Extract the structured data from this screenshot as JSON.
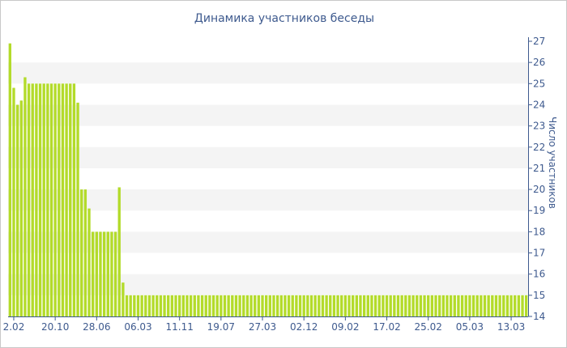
{
  "chart_data": {
    "type": "bar",
    "title": "Динамика участников беседы",
    "ylabel": "Число участников",
    "xlabel": "",
    "ylim": [
      14,
      27
    ],
    "y_ticks": [
      14,
      15,
      16,
      17,
      18,
      19,
      20,
      21,
      22,
      23,
      24,
      25,
      26,
      27
    ],
    "grid": "alternating horizontal bands",
    "bar_color": "#b3db2a",
    "band_color": "#f4f4f4",
    "x_tick_labels": [
      "2.02",
      "20.10",
      "28.06",
      "06.03",
      "11.11",
      "19.07",
      "27.03",
      "02.12",
      "09.02",
      "17.02",
      "25.02",
      "05.03",
      "13.03"
    ],
    "x_tick_positions": [
      1,
      12,
      23,
      34,
      45,
      56,
      67,
      78,
      89,
      100,
      111,
      122,
      133
    ],
    "values": [
      26.9,
      24.8,
      24.0,
      24.2,
      25.3,
      25.0,
      25.0,
      25.0,
      25.0,
      25.0,
      25.0,
      25.0,
      25.0,
      25.0,
      25.0,
      25.0,
      25.0,
      25.0,
      24.1,
      20.0,
      20.0,
      19.1,
      18.0,
      18.0,
      18.0,
      18.0,
      18.0,
      18.0,
      18.0,
      20.1,
      15.6,
      15.0,
      15.0,
      15.0,
      15.0,
      15.0,
      15.0,
      15.0,
      15.0,
      15.0,
      15.0,
      15.0,
      15.0,
      15.0,
      15.0,
      15.0,
      15.0,
      15.0,
      15.0,
      15.0,
      15.0,
      15.0,
      15.0,
      15.0,
      15.0,
      15.0,
      15.0,
      15.0,
      15.0,
      15.0,
      15.0,
      15.0,
      15.0,
      15.0,
      15.0,
      15.0,
      15.0,
      15.0,
      15.0,
      15.0,
      15.0,
      15.0,
      15.0,
      15.0,
      15.0,
      15.0,
      15.0,
      15.0,
      15.0,
      15.0,
      15.0,
      15.0,
      15.0,
      15.0,
      15.0,
      15.0,
      15.0,
      15.0,
      15.0,
      15.0,
      15.0,
      15.0,
      15.0,
      15.0,
      15.0,
      15.0,
      15.0,
      15.0,
      15.0,
      15.0,
      15.0,
      15.0,
      15.0,
      15.0,
      15.0,
      15.0,
      15.0,
      15.0,
      15.0,
      15.0,
      15.0,
      15.0,
      15.0,
      15.0,
      15.0,
      15.0,
      15.0,
      15.0,
      15.0,
      15.0,
      15.0,
      15.0,
      15.0,
      15.0,
      15.0,
      15.0,
      15.0,
      15.0,
      15.0,
      15.0,
      15.0,
      15.0,
      15.0,
      15.0,
      15.0,
      15.0,
      15.0,
      15.0
    ]
  }
}
